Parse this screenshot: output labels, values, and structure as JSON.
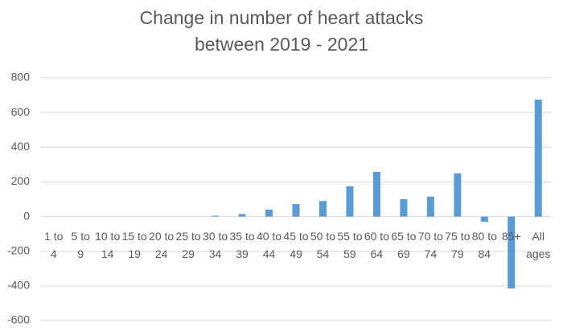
{
  "chart_data": {
    "type": "bar",
    "title": "Change in number of heart attacks between 2019 - 2021",
    "categories": [
      "1 to 4",
      "5 to 9",
      "10 to 14",
      "15 to 19",
      "20 to 24",
      "25 to 29",
      "30 to 34",
      "35 to 39",
      "40 to 44",
      "45 to 49",
      "50 to 54",
      "55 to 59",
      "60 to 64",
      "65 to 69",
      "70 to 74",
      "75 to 79",
      "80 to 84",
      "85+",
      "All ages"
    ],
    "values": [
      0,
      0,
      0,
      0,
      0,
      0,
      5,
      15,
      40,
      72,
      90,
      175,
      258,
      100,
      115,
      250,
      -30,
      -415,
      675
    ],
    "color": "#5b9bd5",
    "ylim": [
      -600,
      800
    ],
    "yticks": [
      -600,
      -400,
      -200,
      0,
      200,
      400,
      600,
      800
    ],
    "grid": true
  }
}
